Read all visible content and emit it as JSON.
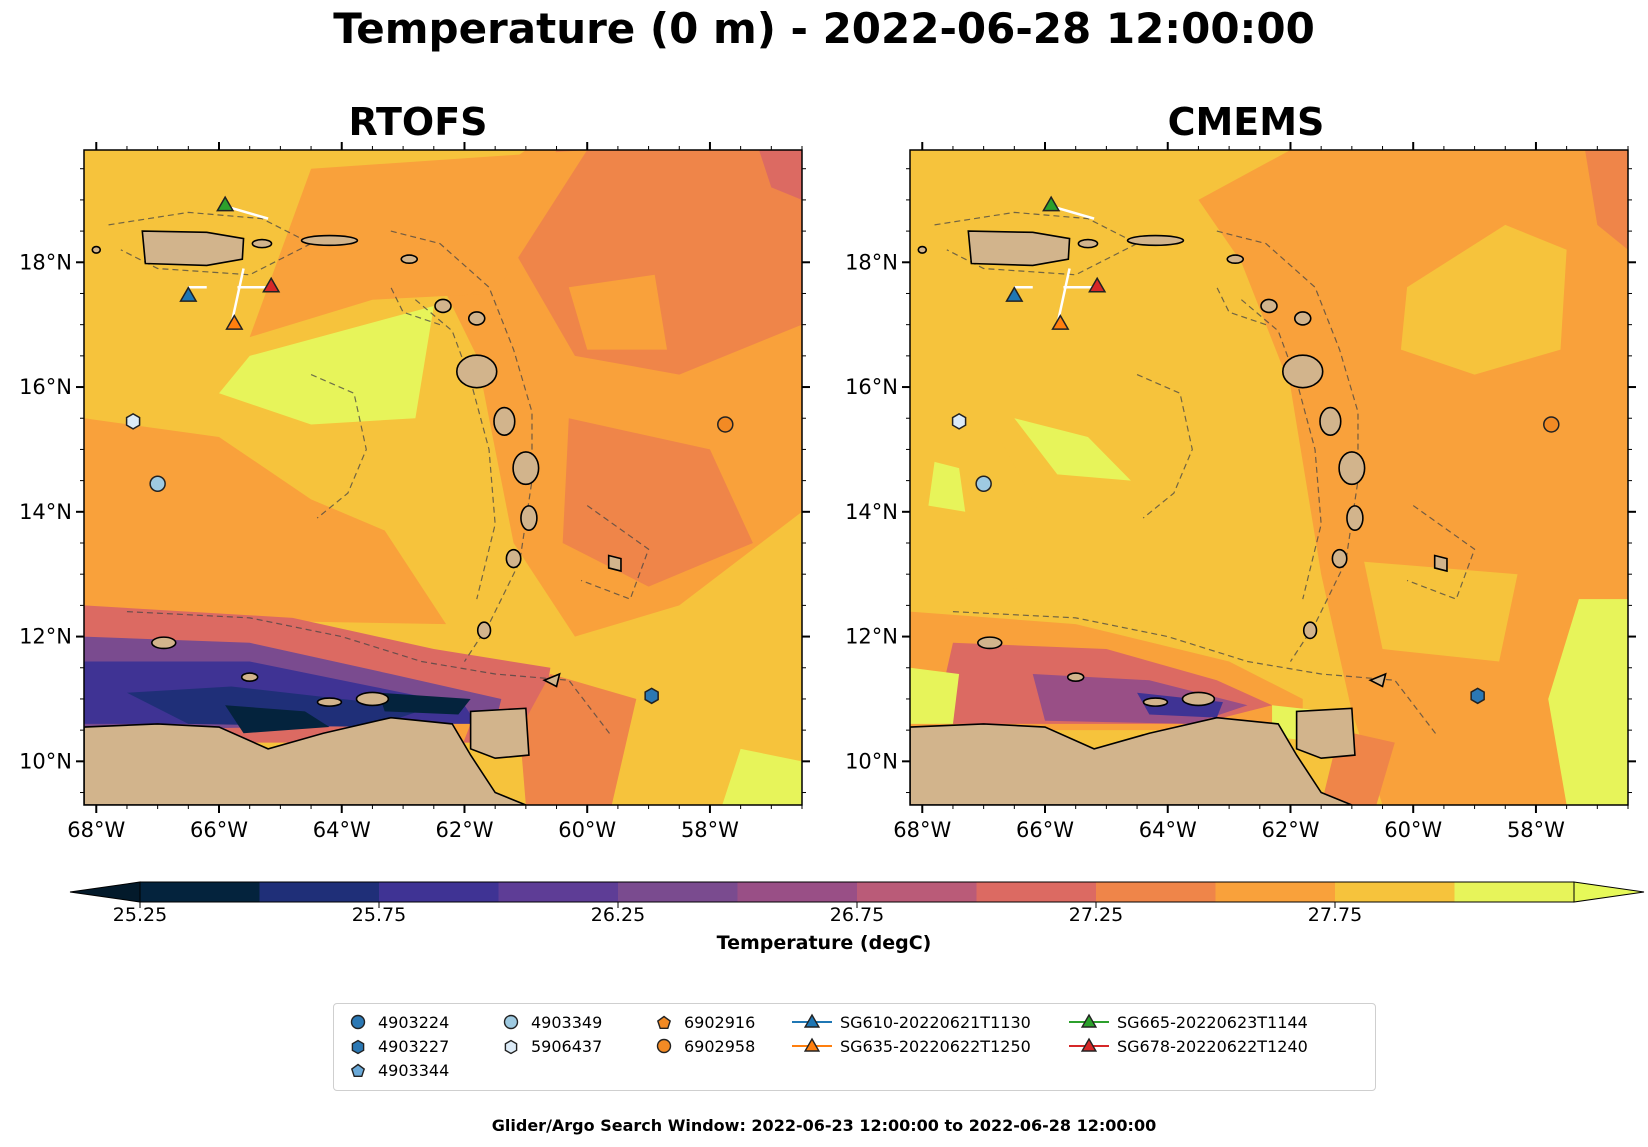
{
  "figure": {
    "title": "Temperature (0 m) - 2022-06-28 12:00:00",
    "footer": "Glider/Argo Search Window: 2022-06-23 12:00:00 to 2022-06-28 12:00:00"
  },
  "chart_data": [
    {
      "type": "heatmap",
      "title": "RTOFS",
      "xlim": [
        -68.2,
        -56.5
      ],
      "ylim": [
        9.3,
        19.8
      ],
      "x_ticks": [
        "68°W",
        "66°W",
        "64°W",
        "62°W",
        "60°W",
        "58°W"
      ],
      "y_ticks": [
        "10°N",
        "12°N",
        "14°N",
        "16°N",
        "18°N"
      ],
      "variable": "Temperature (degC)",
      "depth_m": 0
    },
    {
      "type": "heatmap",
      "title": "CMEMS",
      "xlim": [
        -68.2,
        -56.5
      ],
      "ylim": [
        9.3,
        19.8
      ],
      "x_ticks": [
        "68°W",
        "66°W",
        "64°W",
        "62°W",
        "60°W",
        "58°W"
      ],
      "y_ticks": [
        "10°N",
        "12°N",
        "14°N",
        "16°N",
        "18°N"
      ],
      "variable": "Temperature (degC)",
      "depth_m": 0
    }
  ],
  "colorbar": {
    "label": "Temperature (degC)",
    "min": 25.25,
    "max": 27.75,
    "ticks": [
      "25.25",
      "25.75",
      "26.25",
      "26.75",
      "27.25",
      "27.75"
    ],
    "levels": [
      25.25,
      25.5,
      25.75,
      26.0,
      26.25,
      26.5,
      26.75,
      27.0,
      27.25,
      27.5,
      27.75,
      28.0
    ],
    "colors": [
      "#04233d",
      "#1f2f78",
      "#3f3394",
      "#5e3d96",
      "#7a4b8f",
      "#994f86",
      "#ba5b78",
      "#dc6a62",
      "#ef8549",
      "#f9a13b",
      "#f6c33c",
      "#e7f45a"
    ],
    "under_color": "#031a2b",
    "over_color": "#e6f959"
  },
  "legend": {
    "argo": [
      {
        "label": "4903224",
        "marker": "circle",
        "color": "#2b78b4"
      },
      {
        "label": "4903227",
        "marker": "hexagon",
        "color": "#2b78b4"
      },
      {
        "label": "4903344",
        "marker": "pentagon",
        "color": "#6aa9d8"
      },
      {
        "label": "4903349",
        "marker": "circle",
        "color": "#9ecae1"
      },
      {
        "label": "5906437",
        "marker": "hexagon",
        "color": "#dcebf7"
      },
      {
        "label": "6902916",
        "marker": "pentagon",
        "color": "#f28a24"
      },
      {
        "label": "6902958",
        "marker": "circle",
        "color": "#f28a24"
      }
    ],
    "gliders": [
      {
        "label": "SG610-20220621T1130",
        "color": "#1f77b4"
      },
      {
        "label": "SG635-20220622T1250",
        "color": "#ff7f0e"
      },
      {
        "label": "SG665-20220623T1144",
        "color": "#2ca02c"
      },
      {
        "label": "SG678-20220622T1240",
        "color": "#d62728"
      }
    ]
  },
  "map_markers": [
    {
      "name": "SG665-20220623T1144",
      "lon": -65.9,
      "lat": 18.9,
      "marker": "triangle",
      "color": "#2ca02c"
    },
    {
      "name": "SG610-20220621T1130",
      "lon": -66.5,
      "lat": 17.45,
      "marker": "triangle",
      "color": "#1f77b4"
    },
    {
      "name": "SG678-20220622T1240",
      "lon": -65.15,
      "lat": 17.6,
      "marker": "triangle",
      "color": "#d62728"
    },
    {
      "name": "SG635-20220622T1250",
      "lon": -65.75,
      "lat": 17.0,
      "marker": "triangle",
      "color": "#ff7f0e"
    },
    {
      "name": "5906437",
      "lon": -67.4,
      "lat": 15.45,
      "marker": "hexagon",
      "color": "#dcebf7"
    },
    {
      "name": "4903349",
      "lon": -67.0,
      "lat": 14.45,
      "marker": "circle",
      "color": "#9ecae1"
    },
    {
      "name": "6902958",
      "lon": -57.75,
      "lat": 15.4,
      "marker": "circle",
      "color": "#f28a24"
    },
    {
      "name": "4903227",
      "lon": -58.95,
      "lat": 11.05,
      "marker": "hexagon",
      "color": "#2b78b4"
    }
  ]
}
